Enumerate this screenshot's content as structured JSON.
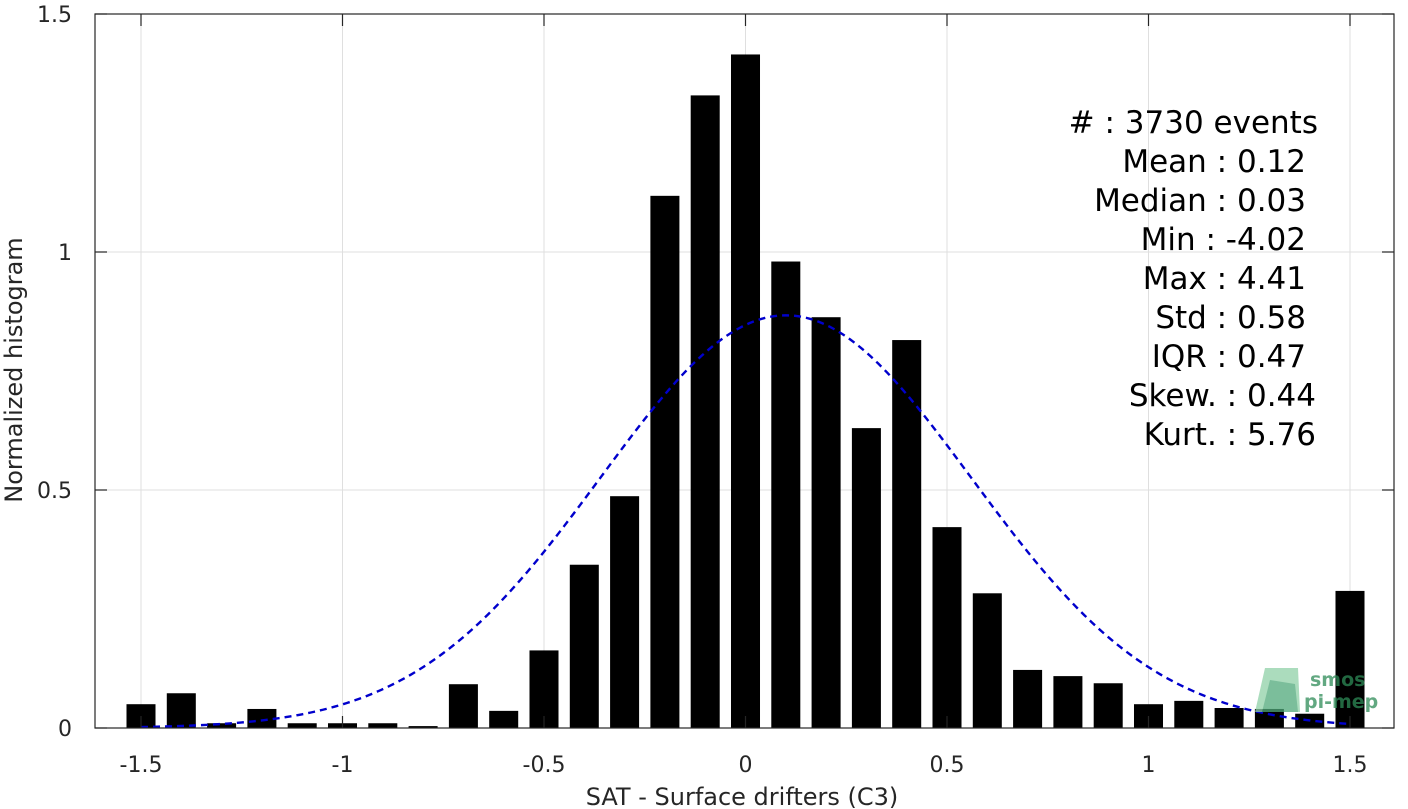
{
  "chart_data": {
    "type": "bar",
    "xlabel": "SAT - Surface drifters (C3)",
    "ylabel": "Normalized histogram",
    "xlim": [
      -1.5,
      1.5
    ],
    "ylim": [
      0,
      1.5
    ],
    "x_ticks": [
      -1.5,
      -1,
      -0.5,
      0,
      0.5,
      1,
      1.5
    ],
    "x_tick_labels": [
      "-1.5",
      "-1",
      "-0.5",
      "0",
      "0.5",
      "1",
      "1.5"
    ],
    "y_ticks": [
      0,
      0.5,
      1,
      1.5
    ],
    "y_tick_labels": [
      "0",
      "0.5",
      "1",
      "1.5"
    ],
    "grid": true,
    "bar_color": "#000000",
    "bins": [
      {
        "x": -1.5,
        "y": 0.05
      },
      {
        "x": -1.4,
        "y": 0.073
      },
      {
        "x": -1.3,
        "y": 0.01
      },
      {
        "x": -1.2,
        "y": 0.04
      },
      {
        "x": -1.1,
        "y": 0.01
      },
      {
        "x": -1.0,
        "y": 0.01
      },
      {
        "x": -0.9,
        "y": 0.01
      },
      {
        "x": -0.8,
        "y": 0.004
      },
      {
        "x": -0.7,
        "y": 0.092
      },
      {
        "x": -0.6,
        "y": 0.036
      },
      {
        "x": -0.5,
        "y": 0.163
      },
      {
        "x": -0.4,
        "y": 0.343
      },
      {
        "x": -0.3,
        "y": 0.487
      },
      {
        "x": -0.2,
        "y": 1.118
      },
      {
        "x": -0.1,
        "y": 1.329
      },
      {
        "x": 0.0,
        "y": 1.415
      },
      {
        "x": 0.1,
        "y": 0.98
      },
      {
        "x": 0.2,
        "y": 0.863
      },
      {
        "x": 0.3,
        "y": 0.63
      },
      {
        "x": 0.4,
        "y": 0.815
      },
      {
        "x": 0.5,
        "y": 0.422
      },
      {
        "x": 0.6,
        "y": 0.283
      },
      {
        "x": 0.7,
        "y": 0.122
      },
      {
        "x": 0.8,
        "y": 0.109
      },
      {
        "x": 0.9,
        "y": 0.094
      },
      {
        "x": 1.0,
        "y": 0.05
      },
      {
        "x": 1.1,
        "y": 0.057
      },
      {
        "x": 1.2,
        "y": 0.042
      },
      {
        "x": 1.3,
        "y": 0.04
      },
      {
        "x": 1.4,
        "y": 0.03
      },
      {
        "x": 1.5,
        "y": 0.288
      }
    ],
    "fit_curve": {
      "type": "normal",
      "mean": 0.1,
      "std": 0.46,
      "peak": 0.867,
      "color": "#0000cc",
      "style": "dashed"
    },
    "stats_annotation": [
      "#  : 3730 events",
      "Mean : 0.12",
      "Median : 0.03",
      "Min : -4.02",
      "Max : 4.41",
      "Std : 0.58",
      "IQR : 0.47",
      "Skew. : 0.44",
      "Kurt. : 5.76"
    ]
  },
  "logo": {
    "line1": "smos",
    "line2": "pi-mep",
    "color": "#2e8b57"
  }
}
